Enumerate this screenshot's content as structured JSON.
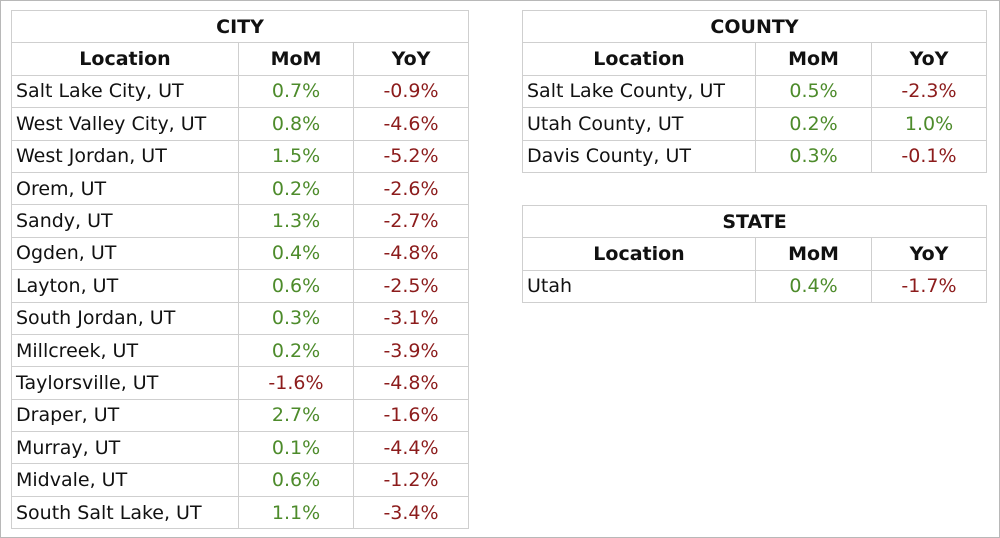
{
  "headers": {
    "location": "Location",
    "mom": "MoM",
    "yoy": "YoY"
  },
  "colors": {
    "positive": "#4d8b2b",
    "negative": "#8c1c1c",
    "border": "#cfcfcf"
  },
  "city": {
    "title": "CITY",
    "rows": [
      {
        "location": "Salt Lake City, UT",
        "mom": "0.7%",
        "yoy": "-0.9%"
      },
      {
        "location": "West Valley City, UT",
        "mom": "0.8%",
        "yoy": "-4.6%"
      },
      {
        "location": "West Jordan, UT",
        "mom": "1.5%",
        "yoy": "-5.2%"
      },
      {
        "location": "Orem, UT",
        "mom": "0.2%",
        "yoy": "-2.6%"
      },
      {
        "location": "Sandy, UT",
        "mom": "1.3%",
        "yoy": "-2.7%"
      },
      {
        "location": "Ogden, UT",
        "mom": "0.4%",
        "yoy": "-4.8%"
      },
      {
        "location": "Layton, UT",
        "mom": "0.6%",
        "yoy": "-2.5%"
      },
      {
        "location": "South Jordan, UT",
        "mom": "0.3%",
        "yoy": "-3.1%"
      },
      {
        "location": "Millcreek, UT",
        "mom": "0.2%",
        "yoy": "-3.9%"
      },
      {
        "location": "Taylorsville, UT",
        "mom": "-1.6%",
        "yoy": "-4.8%"
      },
      {
        "location": "Draper, UT",
        "mom": "2.7%",
        "yoy": "-1.6%"
      },
      {
        "location": "Murray, UT",
        "mom": "0.1%",
        "yoy": "-4.4%"
      },
      {
        "location": "Midvale, UT",
        "mom": "0.6%",
        "yoy": "-1.2%"
      },
      {
        "location": "South Salt Lake, UT",
        "mom": "1.1%",
        "yoy": "-3.4%"
      }
    ]
  },
  "county": {
    "title": "COUNTY",
    "rows": [
      {
        "location": "Salt Lake County, UT",
        "mom": "0.5%",
        "yoy": "-2.3%"
      },
      {
        "location": "Utah County, UT",
        "mom": "0.2%",
        "yoy": "1.0%"
      },
      {
        "location": "Davis County, UT",
        "mom": "0.3%",
        "yoy": "-0.1%"
      }
    ]
  },
  "state": {
    "title": "STATE",
    "rows": [
      {
        "location": "Utah",
        "mom": "0.4%",
        "yoy": "-1.7%"
      }
    ]
  }
}
